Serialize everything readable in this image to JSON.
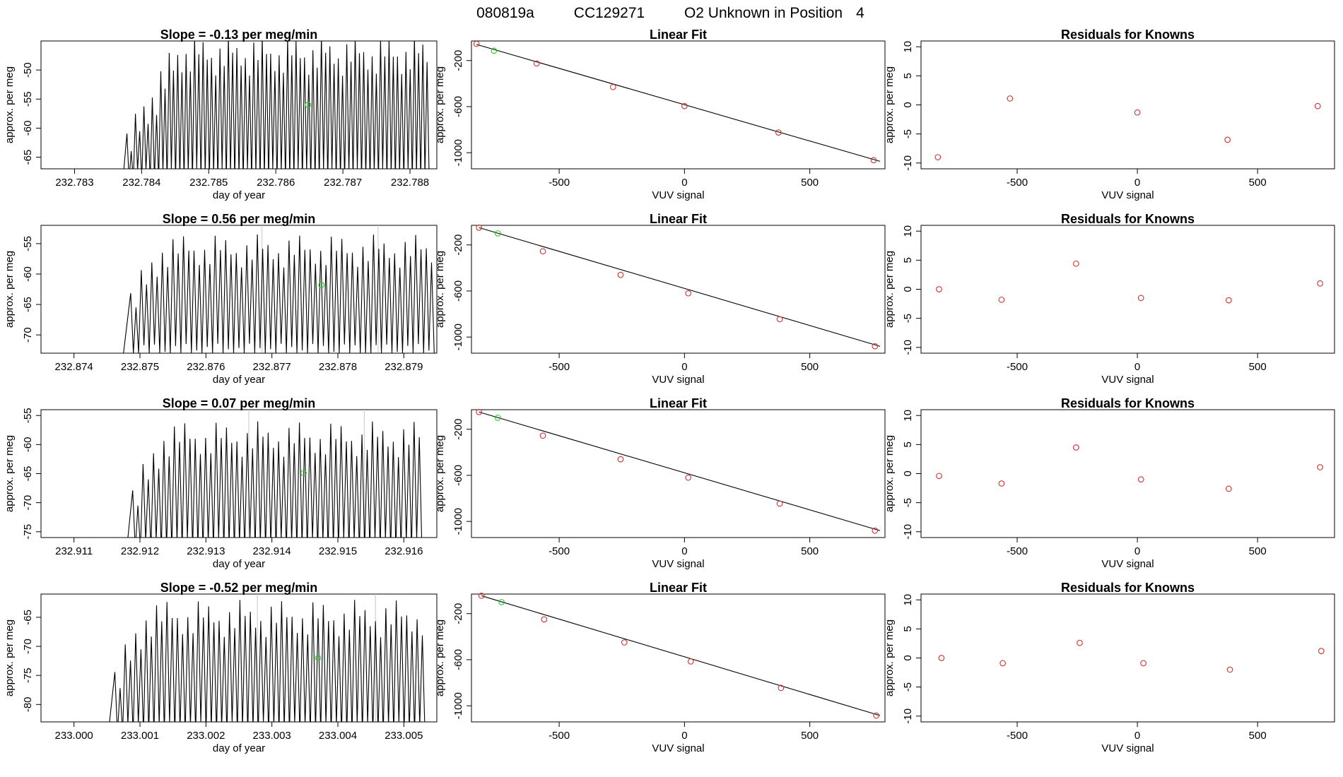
{
  "main_title": {
    "date_code": "080819a",
    "cylinder": "CC129271",
    "description": "O2 Unknown in Position",
    "position": "4"
  },
  "colors": {
    "known_points": "#cd3333",
    "unknown_point": "#22cc22",
    "trace": "#000000",
    "sample_markers": "#c8c8c8"
  },
  "chart_data": [
    {
      "type": "line",
      "row": 1,
      "title_prefix": "Slope = ",
      "slope": "-0.13",
      "title_suffix": " per meg/min",
      "xlabel": "day of year",
      "ylabel": "approx. per meg",
      "xlim": [
        232.7825,
        232.7884
      ],
      "ylim": [
        -67,
        -45
      ],
      "xticks": [
        "232.783",
        "232.784",
        "232.785",
        "232.786",
        "232.787",
        "232.788"
      ],
      "yticks": [
        "-65",
        "-60",
        "-55",
        "-50"
      ],
      "trace": {
        "start": 232.78295,
        "flat_until": 232.78372,
        "osc_start": 232.78375,
        "period": 0.000126,
        "end": 232.78826,
        "low": -69,
        "high": -44,
        "ramp_cycles": 6,
        "ramp_from": 0.35
      },
      "sample_markers": [],
      "unknown_point": {
        "x": 232.78648,
        "y": -56.0
      }
    },
    {
      "type": "line",
      "row": 2,
      "title_prefix": "Slope = ",
      "slope": "0.56",
      "title_suffix": " per meg/min",
      "xlabel": "day of year",
      "ylabel": "approx. per meg",
      "xlim": [
        232.8735,
        232.8795
      ],
      "ylim": [
        -73,
        -52
      ],
      "xticks": [
        "232.874",
        "232.875",
        "232.876",
        "232.877",
        "232.878",
        "232.879"
      ],
      "yticks": [
        "-70",
        "-65",
        "-60",
        "-55"
      ],
      "trace": {
        "start": 232.87383,
        "flat_until": 232.87475,
        "osc_start": 232.87482,
        "period": 0.00016,
        "end": 232.87932,
        "low": -73,
        "high": -53.5,
        "ramp_cycles": 3,
        "ramp_from": 0.55
      },
      "sample_markers": [
        232.87685,
        232.87861
      ],
      "unknown_point": {
        "x": 232.87775,
        "y": -61.8
      }
    },
    {
      "type": "line",
      "row": 3,
      "title_prefix": "Slope = ",
      "slope": "0.07",
      "title_suffix": " per meg/min",
      "xlabel": "day of year",
      "ylabel": "approx. per meg",
      "xlim": [
        232.9105,
        232.9165
      ],
      "ylim": [
        -76,
        -54
      ],
      "xticks": [
        "232.911",
        "232.912",
        "232.913",
        "232.914",
        "232.915",
        "232.916"
      ],
      "yticks": [
        "-75",
        "-70",
        "-65",
        "-60",
        "-55"
      ],
      "trace": {
        "start": 232.91105,
        "flat_until": 232.9118,
        "osc_start": 232.91185,
        "period": 0.000158,
        "end": 232.91625,
        "low": -78,
        "high": -56,
        "ramp_cycles": 3,
        "ramp_from": 0.5
      },
      "sample_markers": [
        232.91365,
        232.9154
      ],
      "unknown_point": {
        "x": 232.91448,
        "y": -64.9
      }
    },
    {
      "type": "line",
      "row": 4,
      "title_prefix": "Slope = ",
      "slope": "-0.52",
      "title_suffix": " per meg/min",
      "xlabel": "day of year",
      "ylabel": "approx. per meg",
      "xlim": [
        232.9995,
        233.0055
      ],
      "ylim": [
        -83,
        -61
      ],
      "xticks": [
        "233.000",
        "233.001",
        "233.002",
        "233.003",
        "233.004",
        "233.005"
      ],
      "yticks": [
        "-80",
        "-75",
        "-70",
        "-65"
      ],
      "trace": {
        "start": 233.0004,
        "flat_until": 233.00052,
        "osc_start": 233.00058,
        "period": 0.000158,
        "end": 233.00528,
        "low": -85,
        "high": -62,
        "ramp_cycles": 3,
        "ramp_from": 0.5
      },
      "sample_markers": [
        233.00278,
        233.00457
      ],
      "unknown_point": {
        "x": 233.0037,
        "y": -72.0
      }
    },
    {
      "type": "scatter",
      "row": 1,
      "title": "Linear Fit",
      "xlabel": "VUV signal",
      "ylabel": "approx. per meg",
      "xlim": [
        -850,
        800
      ],
      "ylim": [
        -1140,
        -30
      ],
      "xticks": [
        -500,
        0,
        500
      ],
      "yticks": [
        -200,
        -600,
        -1000
      ],
      "known_points": [
        [
          -830,
          -55
        ],
        [
          -590,
          -225
        ],
        [
          -285,
          -430
        ],
        [
          0,
          -595
        ],
        [
          375,
          -825
        ],
        [
          755,
          -1065
        ]
      ],
      "unknown_point": [
        -760,
        -115
      ],
      "fit_line": [
        [
          -830,
          -60
        ],
        [
          780,
          -1075
        ]
      ]
    },
    {
      "type": "scatter",
      "row": 2,
      "title": "Linear Fit",
      "xlabel": "VUV signal",
      "ylabel": "approx. per meg",
      "xlim": [
        -850,
        800
      ],
      "ylim": [
        -1140,
        -30
      ],
      "xticks": [
        -500,
        0,
        500
      ],
      "yticks": [
        -200,
        -600,
        -1000
      ],
      "known_points": [
        [
          -820,
          -50
        ],
        [
          -565,
          -255
        ],
        [
          -255,
          -460
        ],
        [
          15,
          -620
        ],
        [
          380,
          -845
        ],
        [
          760,
          -1080
        ]
      ],
      "unknown_point": [
        -745,
        -100
      ],
      "fit_line": [
        [
          -820,
          -50
        ],
        [
          780,
          -1080
        ]
      ]
    },
    {
      "type": "scatter",
      "row": 3,
      "title": "Linear Fit",
      "xlabel": "VUV signal",
      "ylabel": "approx. per meg",
      "xlim": [
        -850,
        800
      ],
      "ylim": [
        -1140,
        -30
      ],
      "xticks": [
        -500,
        0,
        500
      ],
      "yticks": [
        -200,
        -600,
        -1000
      ],
      "known_points": [
        [
          -820,
          -50
        ],
        [
          -565,
          -255
        ],
        [
          -255,
          -460
        ],
        [
          15,
          -620
        ],
        [
          380,
          -845
        ],
        [
          760,
          -1080
        ]
      ],
      "unknown_point": [
        -745,
        -100
      ],
      "fit_line": [
        [
          -820,
          -50
        ],
        [
          780,
          -1080
        ]
      ]
    },
    {
      "type": "scatter",
      "row": 4,
      "title": "Linear Fit",
      "xlabel": "VUV signal",
      "ylabel": "approx. per meg",
      "xlim": [
        -850,
        800
      ],
      "ylim": [
        -1140,
        -30
      ],
      "xticks": [
        -500,
        0,
        500
      ],
      "yticks": [
        -200,
        -600,
        -1000
      ],
      "known_points": [
        [
          -810,
          -45
        ],
        [
          -560,
          -250
        ],
        [
          -240,
          -450
        ],
        [
          25,
          -615
        ],
        [
          385,
          -845
        ],
        [
          765,
          -1085
        ]
      ],
      "unknown_point": [
        -730,
        -100
      ],
      "fit_line": [
        [
          -810,
          -45
        ],
        [
          780,
          -1085
        ]
      ]
    },
    {
      "type": "scatter",
      "row": 1,
      "title": "Residuals for Knowns",
      "xlabel": "VUV signal",
      "ylabel": "approx. per meg",
      "xlim": [
        -900,
        820
      ],
      "ylim": [
        -11,
        11
      ],
      "xticks": [
        -500,
        0,
        500
      ],
      "yticks": [
        10,
        5,
        0,
        -5,
        -10
      ],
      "points": [
        [
          -830,
          -9.0
        ],
        [
          -530,
          1.1
        ],
        [
          0,
          -1.3
        ],
        [
          375,
          -6.0
        ],
        [
          750,
          -0.2
        ]
      ]
    },
    {
      "type": "scatter",
      "row": 2,
      "title": "Residuals for Knowns",
      "xlabel": "VUV signal",
      "ylabel": "approx. per meg",
      "xlim": [
        -900,
        820
      ],
      "ylim": [
        -11,
        11
      ],
      "xticks": [
        -500,
        0,
        500
      ],
      "yticks": [
        10,
        5,
        0,
        -5,
        -10
      ],
      "points": [
        [
          -825,
          0.0
        ],
        [
          -565,
          -1.8
        ],
        [
          -255,
          4.4
        ],
        [
          15,
          -1.5
        ],
        [
          380,
          -1.9
        ],
        [
          760,
          1.0
        ]
      ]
    },
    {
      "type": "scatter",
      "row": 3,
      "title": "Residuals for Knowns",
      "xlabel": "VUV signal",
      "ylabel": "approx. per meg",
      "xlim": [
        -900,
        820
      ],
      "ylim": [
        -11,
        11
      ],
      "xticks": [
        -500,
        0,
        500
      ],
      "yticks": [
        10,
        5,
        0,
        -5,
        -10
      ],
      "points": [
        [
          -825,
          -0.4
        ],
        [
          -565,
          -1.7
        ],
        [
          -255,
          4.5
        ],
        [
          15,
          -1.0
        ],
        [
          380,
          -2.6
        ],
        [
          760,
          1.1
        ]
      ]
    },
    {
      "type": "scatter",
      "row": 4,
      "title": "Residuals for Knowns",
      "xlabel": "VUV signal",
      "ylabel": "approx. per meg",
      "xlim": [
        -900,
        820
      ],
      "ylim": [
        -11,
        11
      ],
      "xticks": [
        -500,
        0,
        500
      ],
      "yticks": [
        10,
        5,
        0,
        -5,
        -10
      ],
      "points": [
        [
          -815,
          0.0
        ],
        [
          -560,
          -0.9
        ],
        [
          -240,
          2.6
        ],
        [
          25,
          -0.9
        ],
        [
          385,
          -2.0
        ],
        [
          765,
          1.2
        ]
      ]
    }
  ]
}
